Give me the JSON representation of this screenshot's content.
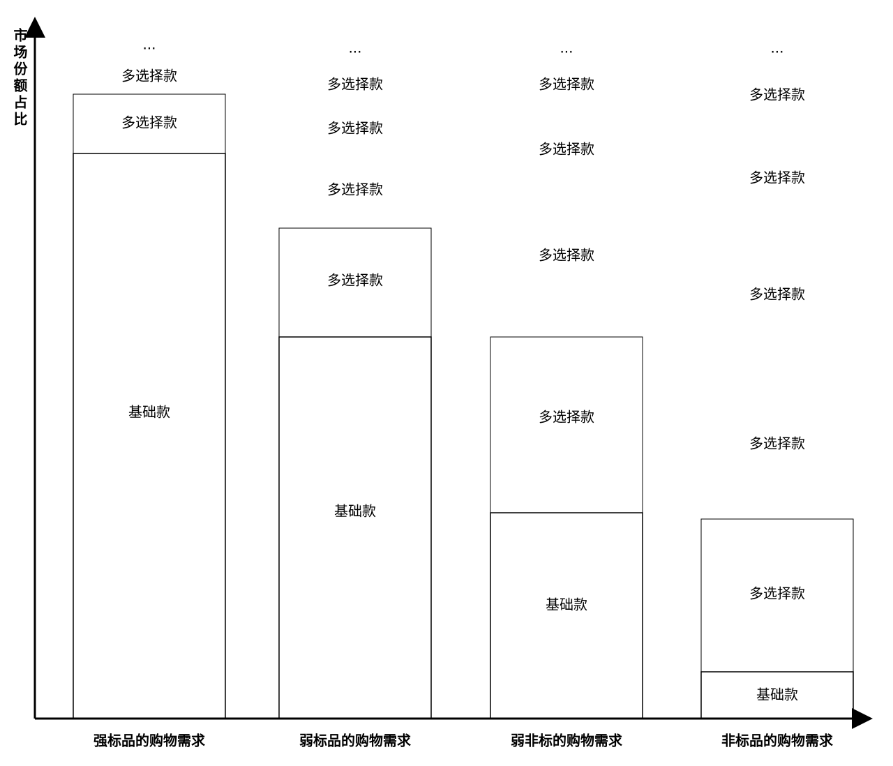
{
  "y_axis_label": "市场份额占比",
  "columns": [
    {
      "label": "强标品的购物需求",
      "segments": [
        "基础款",
        "多选择款",
        "多选择款",
        "..."
      ]
    },
    {
      "label": "弱标品的购物需求",
      "segments": [
        "基础款",
        "多选择款",
        "多选择款",
        "多选择款",
        "多选择款",
        "..."
      ]
    },
    {
      "label": "弱非标的购物需求",
      "segments": [
        "基础款",
        "多选择款",
        "多选择款",
        "多选择款",
        "多选择款",
        "..."
      ]
    },
    {
      "label": "非标品的购物需求",
      "segments": [
        "基础款",
        "多选择款",
        "多选择款",
        "多选择款",
        "多选择款",
        "多选择款",
        "..."
      ]
    }
  ]
}
